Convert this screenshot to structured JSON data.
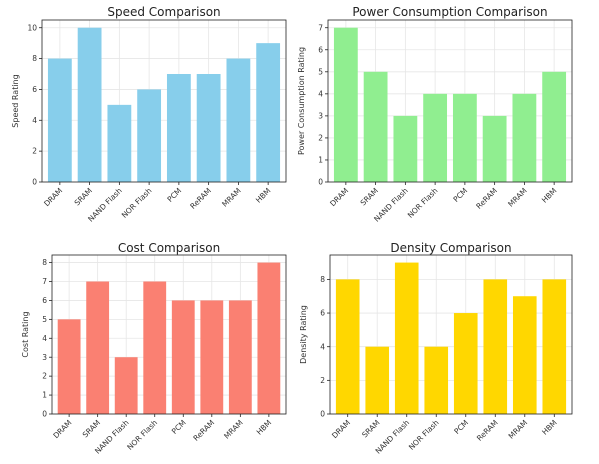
{
  "chart_data": [
    {
      "type": "bar",
      "title": "Speed Comparison",
      "xlabel": "",
      "ylabel": "Speed Rating",
      "categories": [
        "DRAM",
        "SRAM",
        "NAND Flash",
        "NOR Flash",
        "PCM",
        "ReRAM",
        "MRAM",
        "HBM"
      ],
      "values": [
        8,
        10,
        5,
        6,
        7,
        7,
        8,
        9
      ],
      "ylim": [
        0,
        10.5
      ],
      "yticks": [
        0,
        2,
        4,
        6,
        8,
        10
      ],
      "color": "#87CEEB",
      "grid": true
    },
    {
      "type": "bar",
      "title": "Power Consumption Comparison",
      "xlabel": "",
      "ylabel": "Power Consumption Rating",
      "categories": [
        "DRAM",
        "SRAM",
        "NAND Flash",
        "NOR Flash",
        "PCM",
        "ReRAM",
        "MRAM",
        "HBM"
      ],
      "values": [
        7,
        5,
        3,
        4,
        4,
        3,
        4,
        5
      ],
      "ylim": [
        0,
        7.35
      ],
      "yticks": [
        0,
        1,
        2,
        3,
        4,
        5,
        6,
        7
      ],
      "color": "#90EE90",
      "grid": true
    },
    {
      "type": "bar",
      "title": "Cost Comparison",
      "xlabel": "",
      "ylabel": "Cost Rating",
      "categories": [
        "DRAM",
        "SRAM",
        "NAND Flash",
        "NOR Flash",
        "PCM",
        "ReRAM",
        "MRAM",
        "HBM"
      ],
      "values": [
        5,
        7,
        3,
        7,
        6,
        6,
        6,
        8
      ],
      "ylim": [
        0,
        8.4
      ],
      "yticks": [
        0,
        1,
        2,
        3,
        4,
        5,
        6,
        7,
        8
      ],
      "color": "#FA8072",
      "grid": true
    },
    {
      "type": "bar",
      "title": "Density Comparison",
      "xlabel": "",
      "ylabel": "Density Rating",
      "categories": [
        "DRAM",
        "SRAM",
        "NAND Flash",
        "NOR Flash",
        "PCM",
        "ReRAM",
        "MRAM",
        "HBM"
      ],
      "values": [
        8,
        4,
        9,
        4,
        6,
        8,
        7,
        8
      ],
      "ylim": [
        0,
        9.45
      ],
      "yticks": [
        0,
        2,
        4,
        6,
        8
      ],
      "color": "#FFD700",
      "grid": true
    }
  ]
}
